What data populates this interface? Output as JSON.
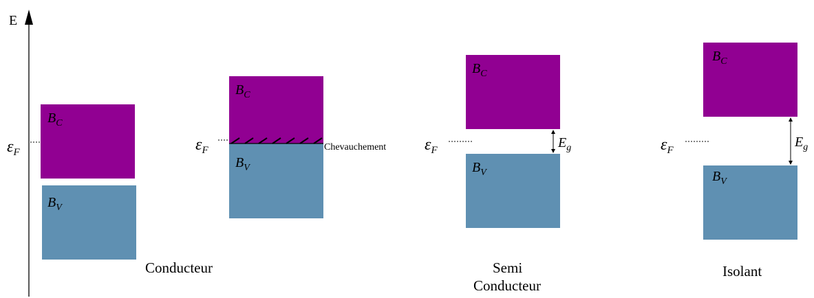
{
  "axis": {
    "label": "E"
  },
  "colors": {
    "conduction": "#910092",
    "valence": "#5f90b2",
    "line": "#000000"
  },
  "band_labels": {
    "conduction": "B",
    "conduction_sub": "C",
    "valence": "B",
    "valence_sub": "V"
  },
  "fermi": {
    "symbol": "ε",
    "sub": "F"
  },
  "gap": {
    "symbol": "E",
    "sub": "g"
  },
  "overlap_label": "Chevauchement",
  "captions": {
    "conducteur": "Conducteur",
    "semi_line1": "Semi",
    "semi_line2": "Conducteur",
    "isolant": "Isolant"
  }
}
